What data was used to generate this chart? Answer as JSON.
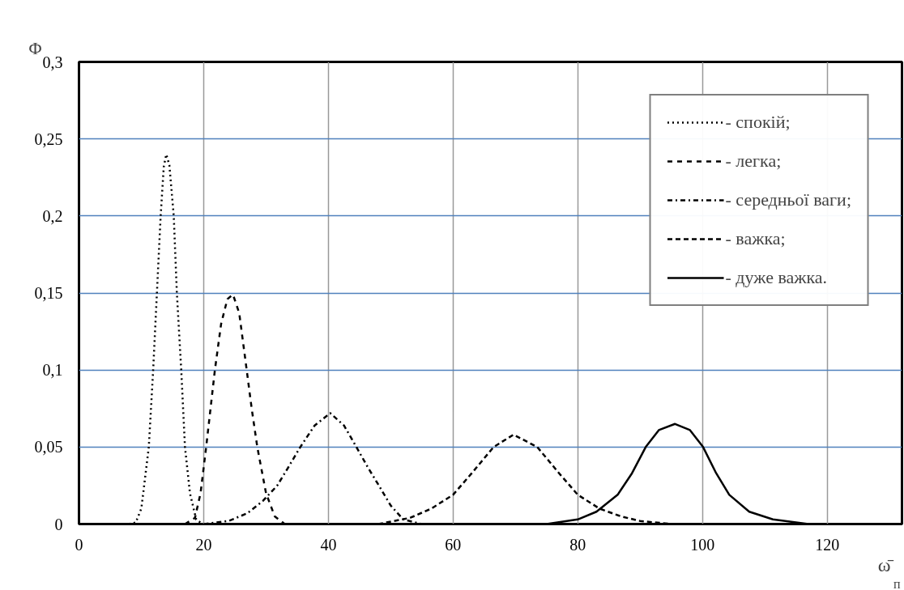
{
  "chart_data": {
    "type": "line",
    "ylabel": "Φ",
    "xlabel": "ω̄$_{п}$",
    "xlim": [
      0,
      132
    ],
    "xticks": [
      0,
      20,
      40,
      60,
      80,
      100,
      120
    ],
    "ylim": [
      0,
      0.3
    ],
    "yticks": [
      0,
      {
        "value": 0.05,
        "label": "0,05"
      },
      {
        "value": 0.1,
        "label": "0,1"
      },
      {
        "value": 0.15,
        "label": "0,15"
      },
      {
        "value": 0.2,
        "label": "0,2"
      },
      {
        "value": 0.25,
        "label": "0,25"
      },
      {
        "value": 0.3,
        "label": "0,3"
      }
    ],
    "grid": true,
    "legend": "top right",
    "marker": "none",
    "series": [
      {
        "name": "- спокій;",
        "color": "#000000",
        "line_style": "dotted",
        "x": [
          8,
          9.1,
          10,
          11.2,
          11.9,
          12.5,
          13.1,
          13.6,
          14,
          14.5,
          15.2,
          15.7,
          16.4,
          17,
          17.8,
          18.8,
          19.8
        ],
        "values": [
          0,
          0.001,
          0.01,
          0.05,
          0.1,
          0.15,
          0.2,
          0.232,
          0.24,
          0.233,
          0.2,
          0.15,
          0.1,
          0.05,
          0.02,
          0.003,
          0
        ]
      },
      {
        "name": "- легка;",
        "color": "#000000",
        "line_style": "dashed",
        "x": [
          17,
          18.6,
          19.5,
          20.4,
          21.8,
          22.8,
          23.8,
          24.7,
          25.7,
          26.9,
          27.7,
          28.6,
          30,
          31.4,
          33
        ],
        "values": [
          0,
          0.004,
          0.02,
          0.05,
          0.1,
          0.13,
          0.146,
          0.149,
          0.137,
          0.1,
          0.075,
          0.05,
          0.02,
          0.005,
          0
        ]
      },
      {
        "name": "- середньої ваги;",
        "color": "#000000",
        "line_style": "dashdot",
        "x": [
          20,
          24,
          27,
          29.5,
          31.8,
          33.6,
          35.5,
          37.8,
          40.3,
          42.5,
          44.5,
          46.3,
          48.1,
          50,
          52,
          55
        ],
        "values": [
          0,
          0.002,
          0.007,
          0.015,
          0.025,
          0.037,
          0.05,
          0.064,
          0.072,
          0.064,
          0.05,
          0.037,
          0.025,
          0.012,
          0.003,
          0
        ]
      },
      {
        "name": "- важка;",
        "color": "#000000",
        "line_style": "dashed",
        "x": [
          48,
          53.1,
          56.5,
          60,
          63,
          66.5,
          69.7,
          73.5,
          77,
          80,
          83.5,
          86.9,
          90,
          95
        ],
        "values": [
          0,
          0.004,
          0.01,
          0.019,
          0.033,
          0.05,
          0.058,
          0.05,
          0.033,
          0.019,
          0.01,
          0.005,
          0.002,
          0
        ]
      },
      {
        "name": "- дуже важка.",
        "color": "#000000",
        "line_style": "solid",
        "x": [
          75,
          80,
          83,
          86.4,
          88.7,
          90.9,
          93,
          95.6,
          98,
          100.1,
          102.2,
          104.3,
          107.5,
          111.3,
          117
        ],
        "values": [
          0,
          0.003,
          0.008,
          0.019,
          0.033,
          0.05,
          0.061,
          0.065,
          0.061,
          0.05,
          0.033,
          0.019,
          0.008,
          0.003,
          0
        ]
      }
    ]
  }
}
